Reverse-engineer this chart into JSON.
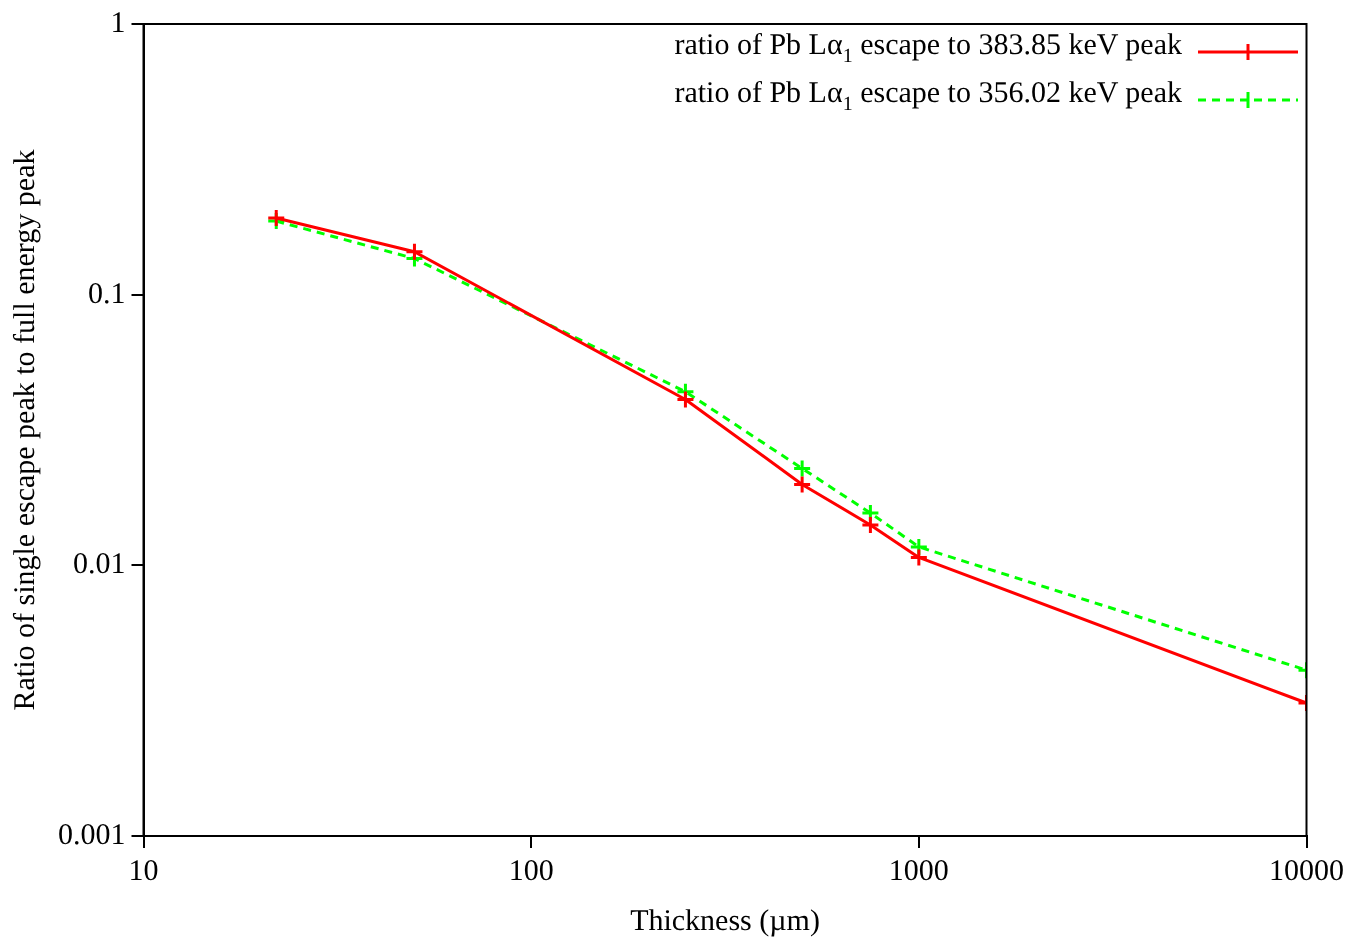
{
  "chart_data": {
    "type": "line",
    "xlabel": "Thickness (µm)",
    "ylabel": "Ratio of single escape peak to full energy peak",
    "log": "xy",
    "grid": false,
    "legend": "top right",
    "xlim": [
      10,
      10000
    ],
    "xticks": [
      10,
      100,
      1000,
      10000
    ],
    "ylim": [
      0.001,
      1
    ],
    "yticks": [
      0.001,
      0.01,
      0.1,
      1
    ],
    "x": [
      22,
      50,
      250,
      500,
      750,
      1000,
      10000
    ],
    "series": [
      {
        "name": "ratio of Pb Lα$_{1}$ escape to 383.85 keV peak",
        "color": "#ff0000",
        "values": [
          0.192,
          0.144,
          0.041,
          0.0199,
          0.0141,
          0.0107,
          0.0031
        ],
        "marker": "cross",
        "line_style": "solid"
      },
      {
        "name": "ratio of Pb Lα$_{1}$ escape to 356.02 keV peak",
        "color": "#00ff00",
        "values": [
          0.187,
          0.136,
          0.0438,
          0.0228,
          0.0156,
          0.0117,
          0.0041
        ],
        "marker": "cross",
        "line_style": "dashed"
      }
    ]
  }
}
